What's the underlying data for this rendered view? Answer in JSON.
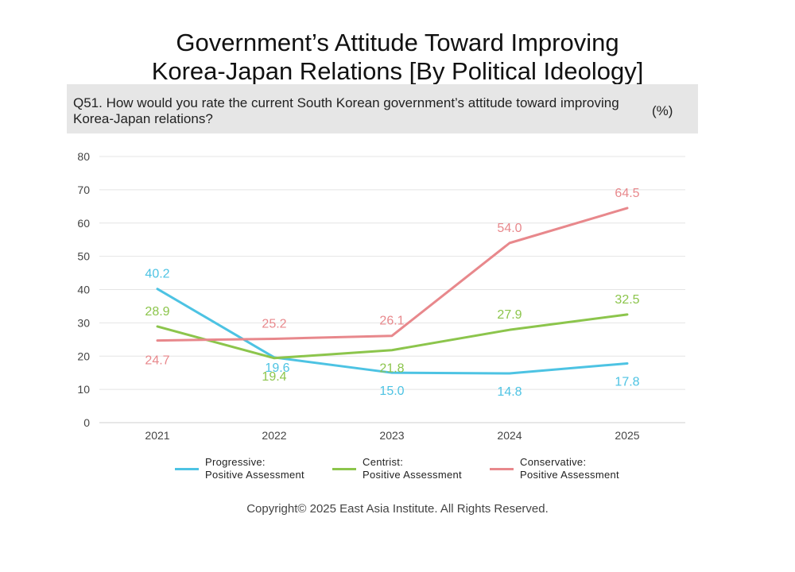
{
  "title_lines": [
    "Government’s Attitude Toward Improving",
    "Korea-Japan Relations [By Political Ideology]"
  ],
  "question": "Q51. How would you rate the current South Korean government’s attitude toward improving Korea-Japan relations?",
  "unit": "(%)",
  "copyright": "Copyright© 2025 East Asia Institute. All Rights Reserved.",
  "chart_data": {
    "type": "line",
    "categories": [
      "2021",
      "2022",
      "2023",
      "2024",
      "2025"
    ],
    "ylim": [
      0,
      80
    ],
    "yticks": [
      0,
      10,
      20,
      30,
      40,
      50,
      60,
      70,
      80
    ],
    "grid": true,
    "legend_position": "bottom",
    "series": [
      {
        "name": "Progressive:\nPositive Assessment",
        "color": "#4dc3e3",
        "values": [
          40.2,
          19.6,
          15.0,
          14.8,
          17.8
        ]
      },
      {
        "name": "Centrist:\nPositive Assessment",
        "color": "#8cc54c",
        "values": [
          28.9,
          19.4,
          21.8,
          27.9,
          32.5
        ]
      },
      {
        "name": "Conservative:\nPositive Assessment",
        "color": "#e8888c",
        "values": [
          24.7,
          25.2,
          26.1,
          54.0,
          64.5
        ]
      }
    ],
    "data_labels": [
      [
        "40.2",
        "19.6",
        "15.0",
        "14.8",
        "17.8"
      ],
      [
        "28.9",
        "19.4",
        "21.8",
        "27.9",
        "32.5"
      ],
      [
        "24.7",
        "25.2",
        "26.1",
        "54.0",
        "64.5"
      ]
    ]
  }
}
